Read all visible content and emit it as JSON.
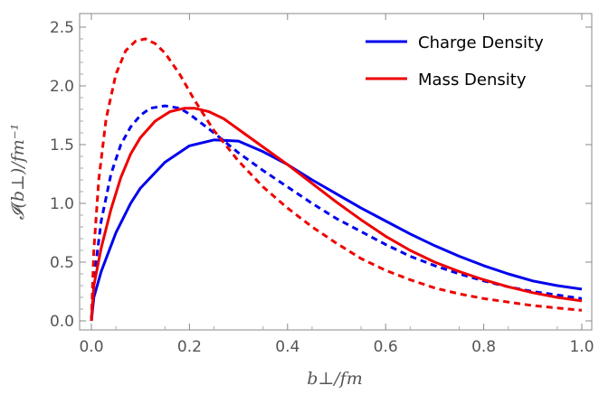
{
  "chart_data": {
    "type": "line",
    "title": "",
    "xlabel": "b⊥/fm",
    "ylabel": "𝓘(b⊥)/fm⁻¹",
    "xlim": [
      0,
      1.0
    ],
    "ylim": [
      0,
      2.5
    ],
    "xticks": [
      0.0,
      0.2,
      0.4,
      0.6,
      0.8,
      1.0
    ],
    "xtick_labels": [
      "0.0",
      "0.2",
      "0.4",
      "0.6",
      "0.8",
      "1.0"
    ],
    "yticks": [
      0.0,
      0.5,
      1.0,
      1.5,
      2.0,
      2.5
    ],
    "ytick_labels": [
      "0.0",
      "0.5",
      "1.0",
      "1.5",
      "2.0",
      "2.5"
    ],
    "grid": false,
    "legend_position": "top-right",
    "legend": [
      {
        "label": "Charge Density",
        "color": "#0000ee"
      },
      {
        "label": "Mass Density",
        "color": "#ee0000"
      }
    ],
    "series": [
      {
        "color": "#0000ee",
        "style": "solid",
        "x": [
          0.0,
          0.005,
          0.02,
          0.05,
          0.08,
          0.1,
          0.15,
          0.2,
          0.25,
          0.3,
          0.35,
          0.4,
          0.45,
          0.5,
          0.55,
          0.6,
          0.65,
          0.7,
          0.75,
          0.8,
          0.85,
          0.9,
          0.95,
          1.0
        ],
        "y": [
          0.0,
          0.2,
          0.42,
          0.75,
          1.0,
          1.13,
          1.35,
          1.49,
          1.54,
          1.53,
          1.44,
          1.33,
          1.2,
          1.08,
          0.96,
          0.85,
          0.74,
          0.64,
          0.55,
          0.47,
          0.4,
          0.34,
          0.3,
          0.27
        ]
      },
      {
        "color": "#0000ee",
        "style": "dashed",
        "x": [
          0.0,
          0.005,
          0.02,
          0.04,
          0.06,
          0.08,
          0.1,
          0.12,
          0.15,
          0.18,
          0.2,
          0.25,
          0.3,
          0.35,
          0.4,
          0.45,
          0.5,
          0.55,
          0.6,
          0.65,
          0.7,
          0.75,
          0.8,
          0.85,
          0.9,
          0.95,
          1.0
        ],
        "y": [
          0.0,
          0.35,
          0.85,
          1.25,
          1.5,
          1.65,
          1.75,
          1.81,
          1.83,
          1.81,
          1.76,
          1.6,
          1.43,
          1.28,
          1.14,
          1.0,
          0.87,
          0.76,
          0.65,
          0.55,
          0.47,
          0.4,
          0.34,
          0.29,
          0.25,
          0.22,
          0.19
        ]
      },
      {
        "color": "#ee0000",
        "style": "solid",
        "x": [
          0.0,
          0.005,
          0.02,
          0.04,
          0.06,
          0.08,
          0.1,
          0.13,
          0.16,
          0.19,
          0.21,
          0.24,
          0.27,
          0.3,
          0.35,
          0.4,
          0.45,
          0.5,
          0.55,
          0.6,
          0.65,
          0.7,
          0.75,
          0.8,
          0.85,
          0.9,
          0.95,
          1.0
        ],
        "y": [
          0.0,
          0.3,
          0.62,
          0.95,
          1.22,
          1.42,
          1.56,
          1.7,
          1.78,
          1.81,
          1.81,
          1.78,
          1.72,
          1.63,
          1.48,
          1.33,
          1.17,
          1.01,
          0.86,
          0.72,
          0.6,
          0.5,
          0.42,
          0.35,
          0.29,
          0.24,
          0.2,
          0.17
        ]
      },
      {
        "color": "#ee0000",
        "style": "dashed",
        "x": [
          0.0,
          0.005,
          0.015,
          0.03,
          0.05,
          0.07,
          0.09,
          0.11,
          0.13,
          0.15,
          0.18,
          0.21,
          0.25,
          0.3,
          0.35,
          0.4,
          0.45,
          0.5,
          0.55,
          0.6,
          0.65,
          0.7,
          0.75,
          0.8,
          0.85,
          0.9,
          0.95,
          1.0
        ],
        "y": [
          0.0,
          0.6,
          1.2,
          1.72,
          2.1,
          2.3,
          2.38,
          2.4,
          2.36,
          2.28,
          2.1,
          1.88,
          1.62,
          1.36,
          1.14,
          0.96,
          0.8,
          0.66,
          0.53,
          0.43,
          0.35,
          0.28,
          0.23,
          0.19,
          0.16,
          0.13,
          0.11,
          0.09
        ]
      }
    ]
  }
}
